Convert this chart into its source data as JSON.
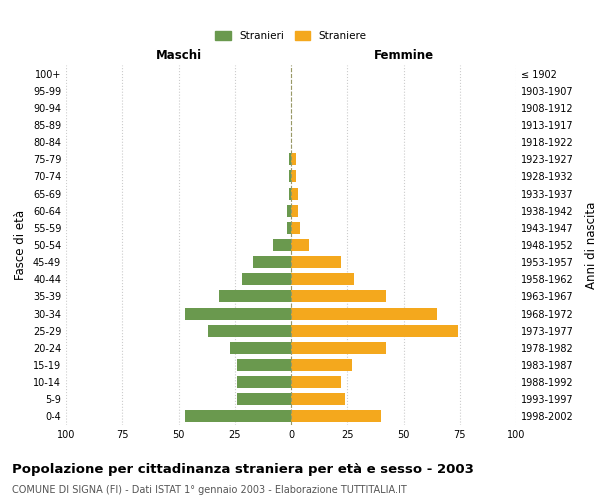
{
  "age_groups": [
    "0-4",
    "5-9",
    "10-14",
    "15-19",
    "20-24",
    "25-29",
    "30-34",
    "35-39",
    "40-44",
    "45-49",
    "50-54",
    "55-59",
    "60-64",
    "65-69",
    "70-74",
    "75-79",
    "80-84",
    "85-89",
    "90-94",
    "95-99",
    "100+"
  ],
  "birth_years": [
    "1998-2002",
    "1993-1997",
    "1988-1992",
    "1983-1987",
    "1978-1982",
    "1973-1977",
    "1968-1972",
    "1963-1967",
    "1958-1962",
    "1953-1957",
    "1948-1952",
    "1943-1947",
    "1938-1942",
    "1933-1937",
    "1928-1932",
    "1923-1927",
    "1918-1922",
    "1913-1917",
    "1908-1912",
    "1903-1907",
    "≤ 1902"
  ],
  "males": [
    47,
    24,
    24,
    24,
    27,
    37,
    47,
    32,
    22,
    17,
    8,
    2,
    2,
    1,
    1,
    1,
    0,
    0,
    0,
    0,
    0
  ],
  "females": [
    40,
    24,
    22,
    27,
    42,
    74,
    65,
    42,
    28,
    22,
    8,
    4,
    3,
    3,
    2,
    2,
    0,
    0,
    0,
    0,
    0
  ],
  "male_color": "#6a994e",
  "female_color": "#f4a81d",
  "grid_color": "#cccccc",
  "center_line_color": "#999966",
  "xlim": 100,
  "title": "Popolazione per cittadinanza straniera per età e sesso - 2003",
  "subtitle": "COMUNE DI SIGNA (FI) - Dati ISTAT 1° gennaio 2003 - Elaborazione TUTTITALIA.IT",
  "left_label": "Maschi",
  "right_label": "Femmine",
  "ylabel_left": "Fasce di età",
  "ylabel_right": "Anni di nascita",
  "legend_male": "Stranieri",
  "legend_female": "Straniere",
  "bg_color": "#ffffff",
  "bar_height": 0.7,
  "title_fontsize": 9.5,
  "subtitle_fontsize": 7.0,
  "label_fontsize": 8.5,
  "tick_fontsize": 7.0
}
